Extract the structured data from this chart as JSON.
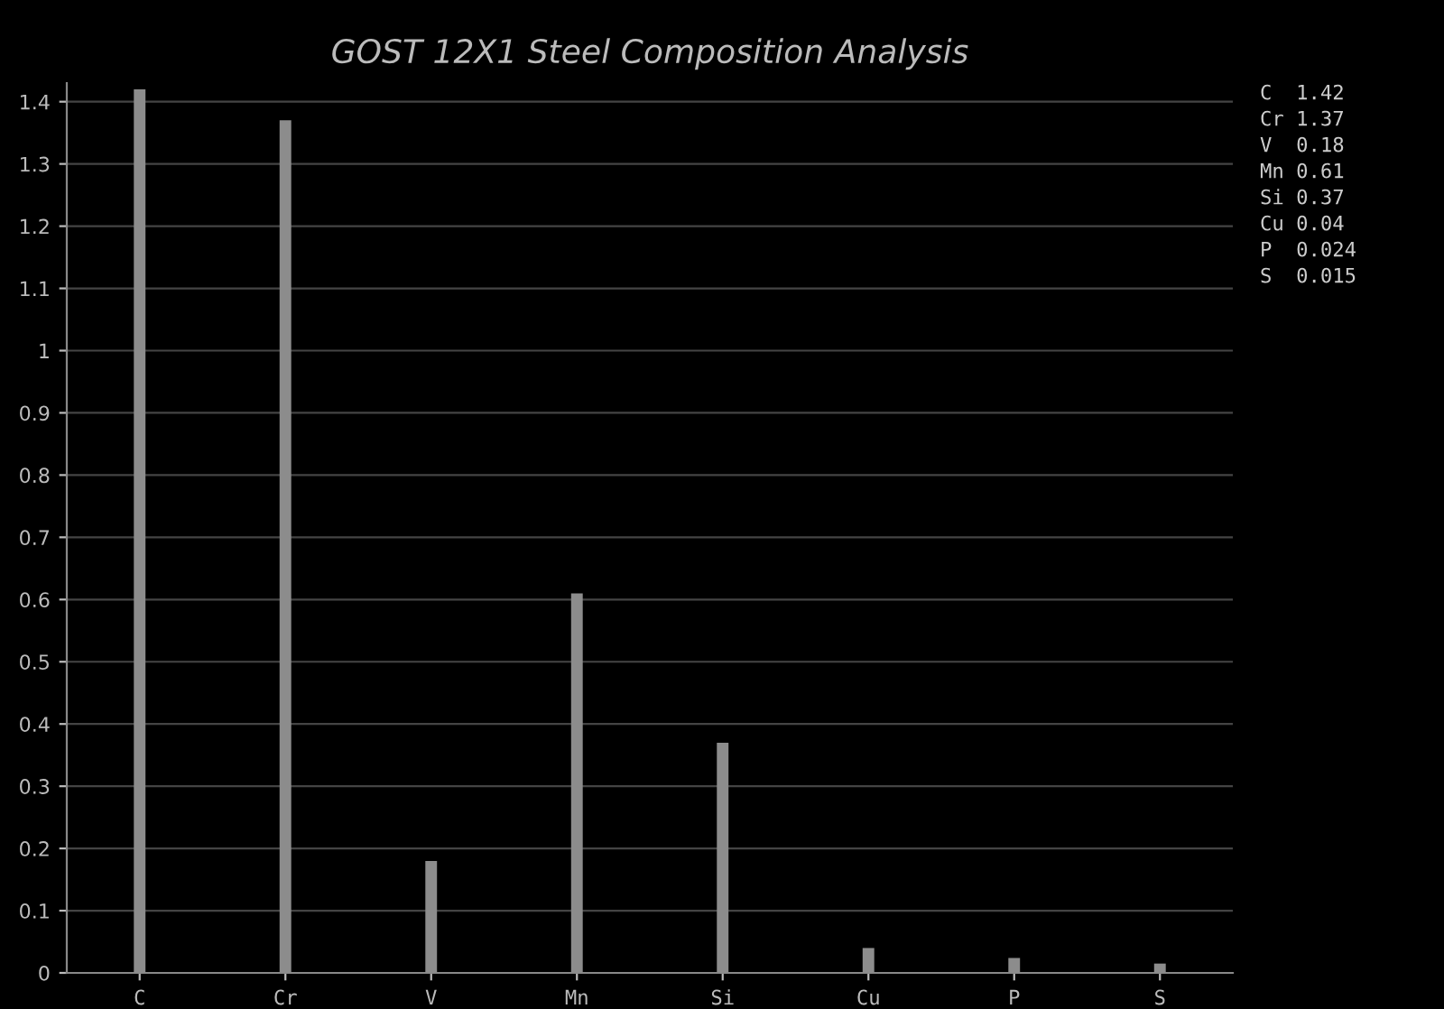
{
  "chart_data": {
    "type": "bar",
    "title": "GOST 12X1 Steel Composition Analysis",
    "categories": [
      "C",
      "Cr",
      "V",
      "Mn",
      "Si",
      "Cu",
      "P",
      "S"
    ],
    "values": [
      1.42,
      1.37,
      0.18,
      0.61,
      0.37,
      0.04,
      0.024,
      0.015
    ],
    "color": "#8c8c8c",
    "ylim": [
      0,
      1.43
    ],
    "yticks": [
      0,
      0.1,
      0.2,
      0.3,
      0.4,
      0.5,
      0.6,
      0.7,
      0.8,
      0.9,
      1,
      1.1,
      1.2,
      1.3,
      1.4
    ],
    "grid": "y",
    "annotations": [
      "C  1.42",
      "Cr 1.37",
      "V  0.18",
      "Mn 0.61",
      "Si 0.37",
      "Cu 0.04",
      "P  0.024",
      "S  0.015"
    ]
  }
}
